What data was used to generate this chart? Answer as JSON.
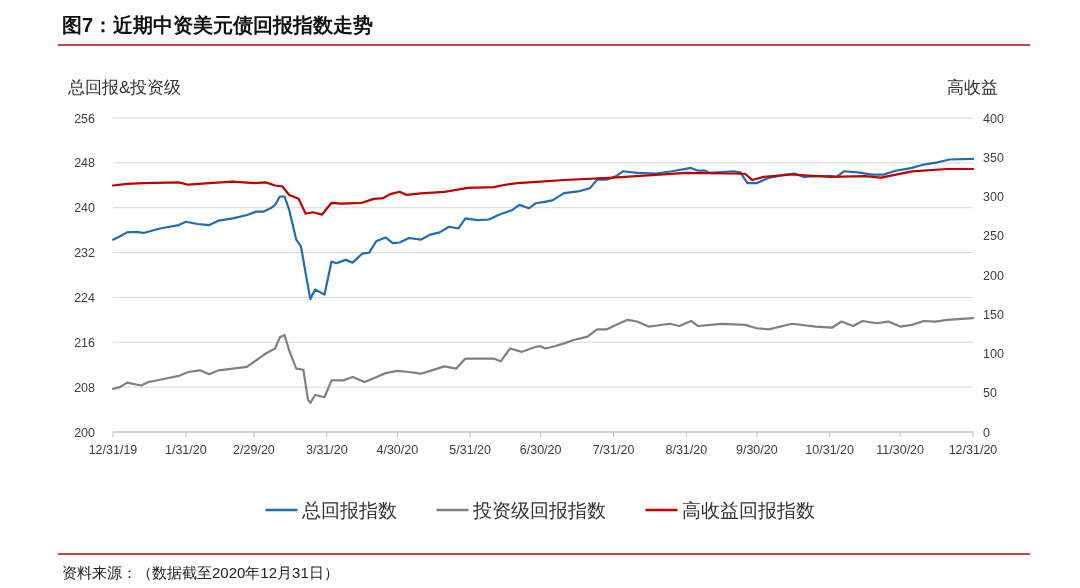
{
  "chart_data": {
    "type": "line",
    "title": "图7：近期中资美元债回报指数走势",
    "ylabel": "总回报&投资级",
    "y2label": "高收益",
    "annotations": [
      "资料来源：（数据截至2020年12月31日）"
    ],
    "xlim": [
      "2019-12-31",
      "2020-12-31"
    ],
    "xticks": [
      {
        "value": "2019-12-31",
        "label": "12/31/19"
      },
      {
        "value": "2020-01-31",
        "label": "1/31/20"
      },
      {
        "value": "2020-02-29",
        "label": "2/29/20"
      },
      {
        "value": "2020-03-31",
        "label": "3/31/20"
      },
      {
        "value": "2020-04-30",
        "label": "4/30/20"
      },
      {
        "value": "2020-05-31",
        "label": "5/31/20"
      },
      {
        "value": "2020-06-30",
        "label": "6/30/20"
      },
      {
        "value": "2020-07-31",
        "label": "7/31/20"
      },
      {
        "value": "2020-08-31",
        "label": "8/31/20"
      },
      {
        "value": "2020-09-30",
        "label": "9/30/20"
      },
      {
        "value": "2020-10-31",
        "label": "10/31/20"
      },
      {
        "value": "2020-11-30",
        "label": "11/30/20"
      },
      {
        "value": "2020-12-31",
        "label": "12/31/20"
      }
    ],
    "ylim": [
      200,
      256
    ],
    "yticks": [
      200,
      208,
      216,
      224,
      232,
      240,
      248,
      256
    ],
    "y2lim": [
      0,
      400
    ],
    "y2ticks": [
      0,
      50,
      100,
      150,
      200,
      250,
      300,
      350,
      400
    ],
    "grid": "y",
    "legend": "bottom",
    "line_style": "solid",
    "marker": "none",
    "series": [
      {
        "name": "总回报指数",
        "color": "#1f6db3",
        "x": [
          "2019-12-31",
          "2020-01-03",
          "2020-01-06",
          "2020-01-10",
          "2020-01-13",
          "2020-01-20",
          "2020-01-28",
          "2020-01-31",
          "2020-02-05",
          "2020-02-10",
          "2020-02-14",
          "2020-02-20",
          "2020-02-26",
          "2020-03-01",
          "2020-03-04",
          "2020-03-07",
          "2020-03-09",
          "2020-03-11",
          "2020-03-13",
          "2020-03-15",
          "2020-03-18",
          "2020-03-20",
          "2020-03-22",
          "2020-03-24",
          "2020-03-26",
          "2020-03-30",
          "2020-04-02",
          "2020-04-04",
          "2020-04-08",
          "2020-04-11",
          "2020-04-15",
          "2020-04-18",
          "2020-04-21",
          "2020-04-25",
          "2020-04-28",
          "2020-05-01",
          "2020-05-05",
          "2020-05-10",
          "2020-05-14",
          "2020-05-18",
          "2020-05-22",
          "2020-05-26",
          "2020-05-29",
          "2020-06-03",
          "2020-06-08",
          "2020-06-12",
          "2020-06-18",
          "2020-06-21",
          "2020-06-25",
          "2020-06-28",
          "2020-07-01",
          "2020-07-05",
          "2020-07-10",
          "2020-07-16",
          "2020-07-21",
          "2020-07-24",
          "2020-07-28",
          "2020-08-01",
          "2020-08-04",
          "2020-08-10",
          "2020-08-18",
          "2020-08-25",
          "2020-09-02",
          "2020-09-05",
          "2020-09-08",
          "2020-09-10",
          "2020-09-20",
          "2020-09-23",
          "2020-09-26",
          "2020-09-30",
          "2020-10-05",
          "2020-10-12",
          "2020-10-16",
          "2020-10-20",
          "2020-10-31",
          "2020-11-03",
          "2020-11-06",
          "2020-11-12",
          "2020-11-18",
          "2020-11-23",
          "2020-11-28",
          "2020-12-05",
          "2020-12-10",
          "2020-12-16",
          "2020-12-21",
          "2020-12-31"
        ],
        "values": [
          234.3,
          234.9,
          235.6,
          235.7,
          235.5,
          236.3,
          236.9,
          237.5,
          237.1,
          236.9,
          237.7,
          238.1,
          238.7,
          239.3,
          239.3,
          239.9,
          240.5,
          242.0,
          242.0,
          239.6,
          234.3,
          233.1,
          228.3,
          223.7,
          225.4,
          224.5,
          230.4,
          230.1,
          230.7,
          230.2,
          231.8,
          232.0,
          234.0,
          234.7,
          233.7,
          233.8,
          234.6,
          234.3,
          235.2,
          235.6,
          236.6,
          236.3,
          238.1,
          237.8,
          237.9,
          238.7,
          239.6,
          240.5,
          239.9,
          240.8,
          241.0,
          241.3,
          242.6,
          242.9,
          243.5,
          245.0,
          245.0,
          245.6,
          246.5,
          246.2,
          246.1,
          246.5,
          247.1,
          246.6,
          246.6,
          246.2,
          246.5,
          246.3,
          244.4,
          244.4,
          245.3,
          245.9,
          246.1,
          245.5,
          245.7,
          245.5,
          246.5,
          246.3,
          245.9,
          245.9,
          246.6,
          247.1,
          247.7,
          248.1,
          248.6,
          248.7
        ]
      },
      {
        "name": "投资级回报指数",
        "color": "#808080",
        "x": [
          "2019-12-31",
          "2020-01-03",
          "2020-01-06",
          "2020-01-12",
          "2020-01-15",
          "2020-01-21",
          "2020-01-28",
          "2020-02-01",
          "2020-02-06",
          "2020-02-10",
          "2020-02-14",
          "2020-02-20",
          "2020-02-26",
          "2020-03-02",
          "2020-03-05",
          "2020-03-09",
          "2020-03-11",
          "2020-03-13",
          "2020-03-15",
          "2020-03-18",
          "2020-03-21",
          "2020-03-23",
          "2020-03-24",
          "2020-03-26",
          "2020-03-30",
          "2020-04-02",
          "2020-04-07",
          "2020-04-11",
          "2020-04-16",
          "2020-04-20",
          "2020-04-25",
          "2020-04-30",
          "2020-05-05",
          "2020-05-10",
          "2020-05-14",
          "2020-05-20",
          "2020-05-25",
          "2020-05-29",
          "2020-06-05",
          "2020-06-10",
          "2020-06-13",
          "2020-06-17",
          "2020-06-22",
          "2020-06-28",
          "2020-06-30",
          "2020-07-02",
          "2020-07-06",
          "2020-07-10",
          "2020-07-14",
          "2020-07-20",
          "2020-07-24",
          "2020-07-28",
          "2020-08-01",
          "2020-08-06",
          "2020-08-10",
          "2020-08-15",
          "2020-08-24",
          "2020-08-28",
          "2020-09-02",
          "2020-09-05",
          "2020-09-15",
          "2020-09-25",
          "2020-09-30",
          "2020-10-05",
          "2020-10-15",
          "2020-10-25",
          "2020-11-01",
          "2020-11-05",
          "2020-11-10",
          "2020-11-14",
          "2020-11-20",
          "2020-11-25",
          "2020-11-30",
          "2020-12-05",
          "2020-12-10",
          "2020-12-15",
          "2020-12-20",
          "2020-12-31"
        ],
        "values": [
          207.7,
          208.0,
          208.8,
          208.3,
          208.9,
          209.4,
          210.0,
          210.7,
          211.0,
          210.3,
          211.0,
          211.3,
          211.6,
          213.1,
          214.0,
          214.9,
          216.9,
          217.3,
          214.5,
          211.3,
          211.1,
          205.7,
          205.2,
          206.6,
          206.2,
          209.2,
          209.2,
          209.8,
          208.9,
          209.6,
          210.5,
          210.9,
          210.7,
          210.4,
          210.9,
          211.7,
          211.3,
          213.1,
          213.1,
          213.1,
          212.6,
          214.9,
          214.3,
          215.2,
          215.3,
          214.9,
          215.3,
          215.8,
          216.4,
          217.0,
          218.3,
          218.3,
          219.1,
          220.0,
          219.7,
          218.8,
          219.3,
          218.9,
          219.8,
          218.9,
          219.3,
          219.1,
          218.5,
          218.3,
          219.3,
          218.8,
          218.6,
          219.7,
          218.9,
          219.8,
          219.4,
          219.7,
          218.8,
          219.1,
          219.8,
          219.7,
          220.0,
          220.3
        ]
      },
      {
        "name": "高收益回报指数",
        "color": "#c00000",
        "axis": "y2",
        "x": [
          "2019-12-31",
          "2020-01-06",
          "2020-01-13",
          "2020-01-28",
          "2020-02-01",
          "2020-02-10",
          "2020-02-20",
          "2020-02-29",
          "2020-03-05",
          "2020-03-09",
          "2020-03-12",
          "2020-03-15",
          "2020-03-19",
          "2020-03-22",
          "2020-03-25",
          "2020-03-29",
          "2020-04-02",
          "2020-04-06",
          "2020-04-15",
          "2020-04-20",
          "2020-04-24",
          "2020-04-27",
          "2020-05-01",
          "2020-05-04",
          "2020-05-10",
          "2020-05-20",
          "2020-05-30",
          "2020-06-10",
          "2020-06-15",
          "2020-06-20",
          "2020-06-30",
          "2020-07-10",
          "2020-07-31",
          "2020-08-31",
          "2020-09-25",
          "2020-09-28",
          "2020-10-03",
          "2020-10-15",
          "2020-10-31",
          "2020-11-15",
          "2020-11-22",
          "2020-12-05",
          "2020-12-20",
          "2020-12-31"
        ],
        "values": [
          314,
          316,
          317,
          318,
          315,
          317,
          319,
          317,
          318,
          314,
          313,
          302,
          297,
          278,
          280,
          277,
          292,
          291,
          292,
          297,
          298,
          303,
          306,
          302,
          304,
          306,
          311,
          312,
          315,
          317,
          319,
          321,
          324,
          330,
          329,
          321,
          325,
          328,
          325,
          326,
          324,
          332,
          335,
          335
        ]
      }
    ]
  }
}
